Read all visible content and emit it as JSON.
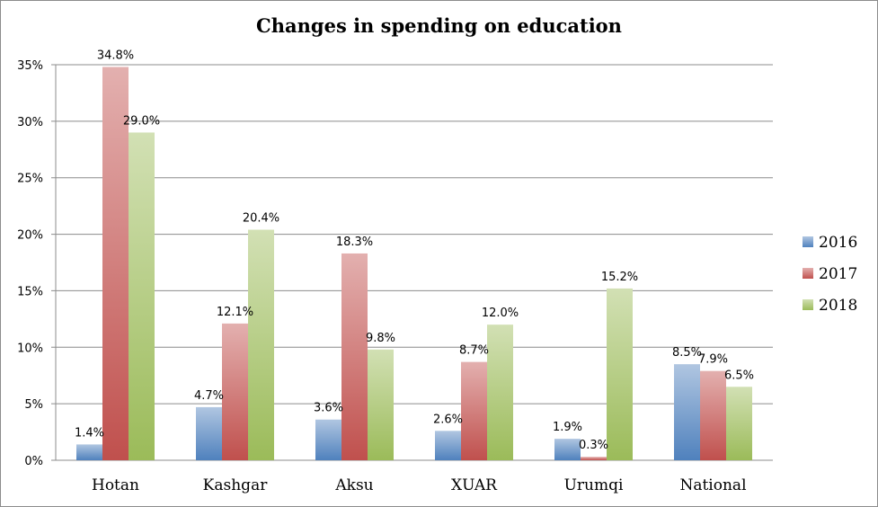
{
  "chart_data": {
    "type": "bar",
    "title": "Changes in spending on education",
    "categories": [
      "Hotan",
      "Kashgar",
      "Aksu",
      "XUAR",
      "Urumqi",
      "National"
    ],
    "series": [
      {
        "name": "2016",
        "color": "#4f81bd",
        "values": [
          1.4,
          4.7,
          3.6,
          2.6,
          1.9,
          8.5
        ]
      },
      {
        "name": "2017",
        "color": "#c0504d",
        "values": [
          34.8,
          12.1,
          18.3,
          8.7,
          0.3,
          7.9
        ]
      },
      {
        "name": "2018",
        "color": "#9bbb59",
        "values": [
          29.0,
          20.4,
          9.8,
          12.0,
          15.2,
          6.5
        ]
      }
    ],
    "data_labels": [
      [
        "1.4%",
        "4.7%",
        "3.6%",
        "2.6%",
        "1.9%",
        "8.5%"
      ],
      [
        "34.8%",
        "12.1%",
        "18.3%",
        "8.7%",
        "0.3%",
        "7.9%"
      ],
      [
        "29.0%",
        "20.4%",
        "9.8%",
        "12.0%",
        "15.2%",
        "6.5%"
      ]
    ],
    "yticks": [
      0,
      5,
      10,
      15,
      20,
      25,
      30,
      35
    ],
    "ytick_labels": [
      "0%",
      "5%",
      "10%",
      "15%",
      "20%",
      "25%",
      "30%",
      "35%"
    ],
    "ylim": [
      0,
      35
    ],
    "grid": true,
    "legend_position": "right",
    "xlabel": "",
    "ylabel": ""
  }
}
